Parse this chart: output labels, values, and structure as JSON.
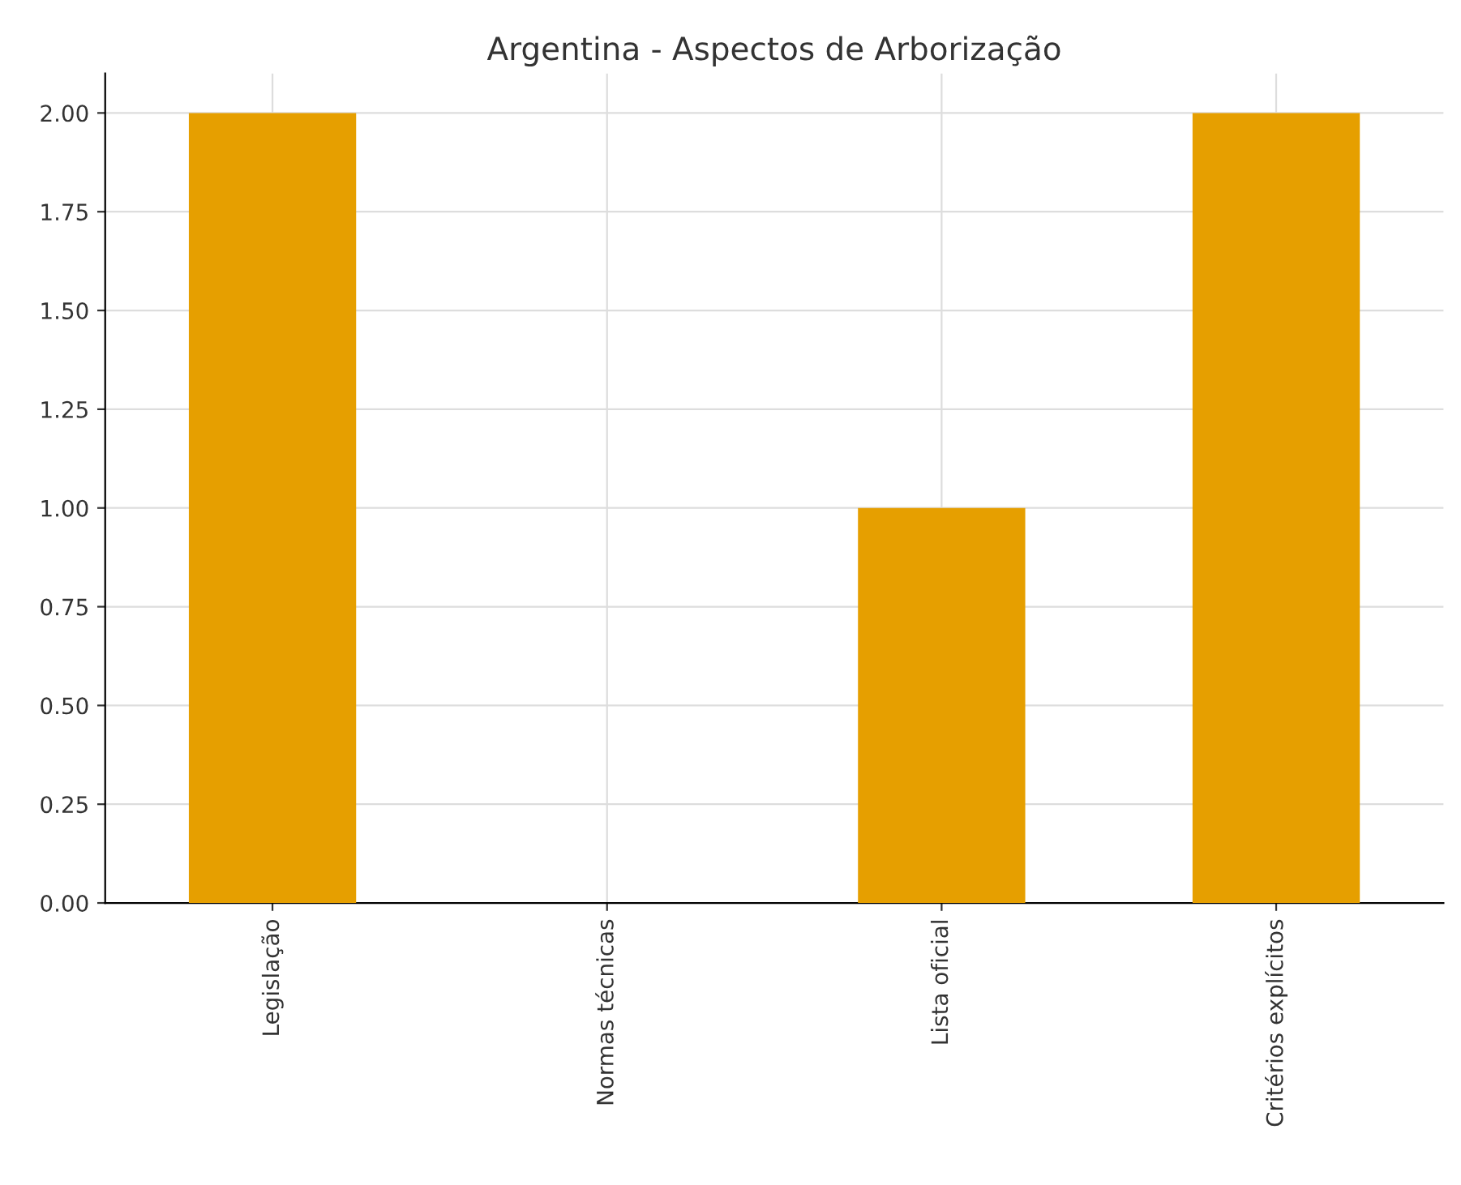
{
  "chart_data": {
    "type": "bar",
    "title": "Argentina - Aspectos de Arborização",
    "categories": [
      "Legislação",
      "Normas técnicas",
      "Lista oficial",
      "Critérios explícitos"
    ],
    "values": [
      2,
      0,
      1,
      2
    ],
    "color": "#e69f00",
    "ylim": [
      0,
      2.1
    ],
    "yticks": [
      {
        "value": 0,
        "label": "0.00"
      },
      {
        "value": 0.25,
        "label": "0.25"
      },
      {
        "value": 0.5,
        "label": "0.50"
      },
      {
        "value": 0.75,
        "label": "0.75"
      },
      {
        "value": 1,
        "label": "1.00"
      },
      {
        "value": 1.25,
        "label": "1.25"
      },
      {
        "value": 1.5,
        "label": "1.50"
      },
      {
        "value": 1.75,
        "label": "1.75"
      },
      {
        "value": 2,
        "label": "2.00"
      }
    ],
    "grid": true
  }
}
